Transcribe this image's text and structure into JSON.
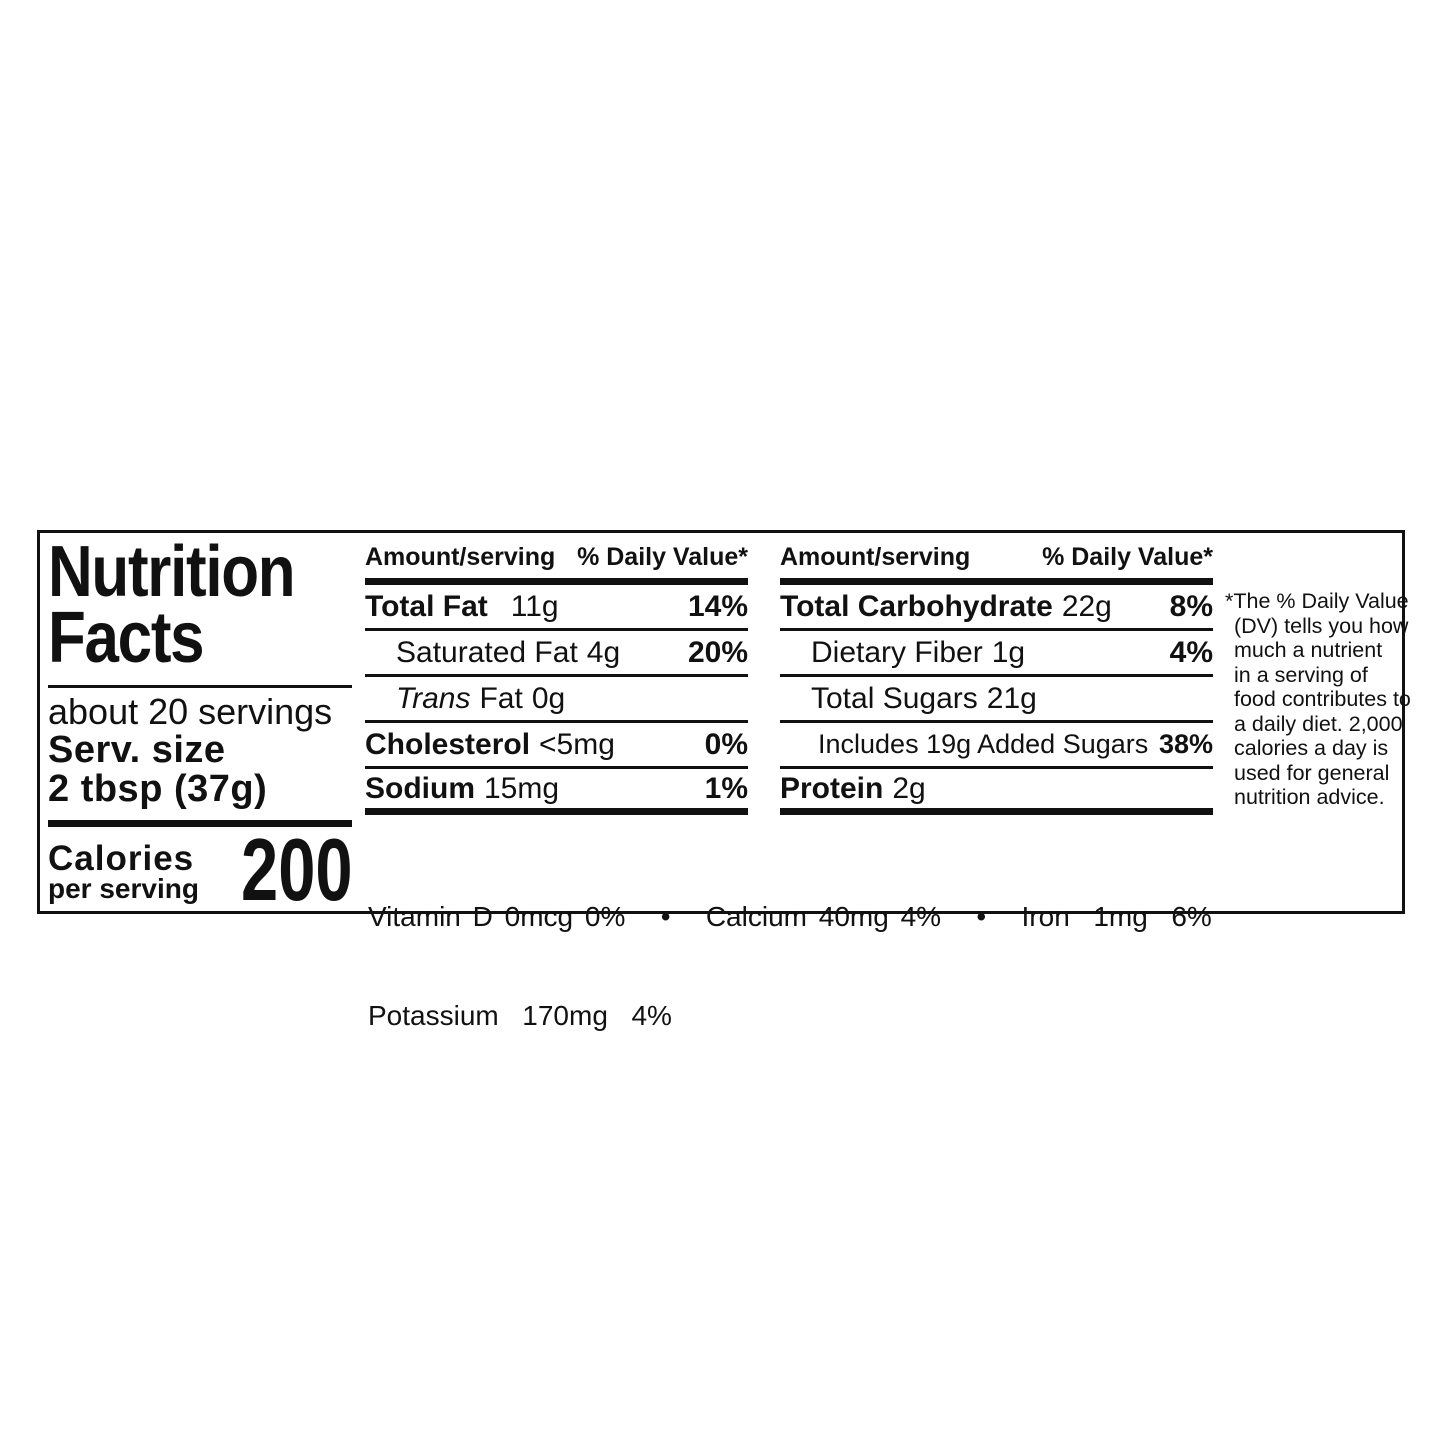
{
  "nutrition": {
    "title_line1": "Nutrition",
    "title_line2": "Facts",
    "servings_count": "about 20 servings",
    "serving_size_label": "Serv. size",
    "serving_size_value": "2 tbsp (37g)",
    "calories_label": "Calories",
    "calories_sublabel": "per serving",
    "calories_value": "200",
    "column_headers": {
      "amount": "Amount/serving",
      "daily_value": "% Daily Value*"
    },
    "fat_column_rows": [
      {
        "name": "Total Fat",
        "amount": "11g",
        "dv": "14%"
      },
      {
        "name": "Saturated Fat",
        "amount": "4g",
        "dv": "20%"
      },
      {
        "name_italic": "Trans",
        "name_rest": "Fat",
        "amount": "0g",
        "dv": ""
      },
      {
        "name": "Cholesterol",
        "amount": "<5mg",
        "dv": "0%"
      },
      {
        "name": "Sodium",
        "amount": "15mg",
        "dv": "1%"
      }
    ],
    "carb_column_rows": [
      {
        "name": "Total Carbohydrate",
        "amount": "22g",
        "dv": "8%"
      },
      {
        "name": "Dietary Fiber",
        "amount": "1g",
        "dv": "4%"
      },
      {
        "name": "Total Sugars",
        "amount": "21g",
        "dv": ""
      },
      {
        "name": "Includes 19g Added Sugars",
        "amount": "",
        "dv": "38%"
      },
      {
        "name": "Protein",
        "amount": "2g",
        "dv": ""
      }
    ],
    "micronutrients_line1": "Vitamin D 0mcg 0%   •   Calcium 40mg 4%   •   Iron  1mg  6%",
    "micronutrients_line2": "Potassium  170mg  4%",
    "footnote_lines": [
      "*The % Daily Value",
      "(DV) tells you how",
      "much a nutrient",
      "in a serving of",
      "food contributes to",
      "a daily diet. 2,000",
      "calories a day is",
      "used for general",
      "nutrition advice."
    ]
  },
  "colors": {
    "ink": "#111111",
    "background": "#ffffff"
  }
}
